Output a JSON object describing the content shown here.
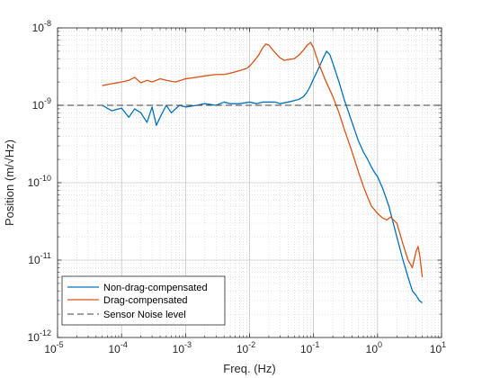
{
  "chart_data": {
    "type": "line",
    "xlabel": "Freq. (Hz)",
    "ylabel": "Position (m/√Hz)",
    "x_scale": "log",
    "y_scale": "log",
    "xlim": [
      1e-05,
      10
    ],
    "ylim": [
      1e-12,
      1e-08
    ],
    "grid": true,
    "minor_grid": true,
    "legend_position": "bottom-left",
    "x_ticks": [
      {
        "value": 1e-05,
        "base": "10",
        "exp": "-5"
      },
      {
        "value": 0.0001,
        "base": "10",
        "exp": "-4"
      },
      {
        "value": 0.001,
        "base": "10",
        "exp": "-3"
      },
      {
        "value": 0.01,
        "base": "10",
        "exp": "-2"
      },
      {
        "value": 0.1,
        "base": "10",
        "exp": "-1"
      },
      {
        "value": 1,
        "base": "10",
        "exp": "0"
      },
      {
        "value": 10,
        "base": "10",
        "exp": "1"
      }
    ],
    "y_ticks": [
      {
        "value": 1e-12,
        "base": "10",
        "exp": "-12"
      },
      {
        "value": 1e-11,
        "base": "10",
        "exp": "-11"
      },
      {
        "value": 1e-10,
        "base": "10",
        "exp": "-10"
      },
      {
        "value": 1e-09,
        "base": "10",
        "exp": "-9"
      },
      {
        "value": 1e-08,
        "base": "10",
        "exp": "-8"
      }
    ],
    "series": [
      {
        "name": "Non-drag-compensated",
        "color": "#0072BD",
        "style": "solid",
        "x": [
          5e-05,
          7e-05,
          0.0001,
          0.00013,
          0.00016,
          0.0002,
          0.00025,
          0.0003,
          0.00035,
          0.0004,
          0.0005,
          0.0006,
          0.0008,
          0.001,
          0.0015,
          0.002,
          0.003,
          0.004,
          0.005,
          0.007,
          0.01,
          0.013,
          0.016,
          0.02,
          0.025,
          0.03,
          0.04,
          0.05,
          0.06,
          0.07,
          0.08,
          0.09,
          0.1,
          0.12,
          0.14,
          0.16,
          0.18,
          0.2,
          0.25,
          0.3,
          0.4,
          0.5,
          0.6,
          0.7,
          0.8,
          0.9,
          1.0,
          1.1,
          1.2,
          1.5,
          2.0,
          2.5,
          3.0,
          3.5,
          4.0,
          4.5,
          5.0
        ],
        "y": [
          1e-09,
          8.5e-10,
          9.2e-10,
          7e-10,
          9e-10,
          8e-10,
          6e-10,
          9.5e-10,
          5.5e-10,
          7e-10,
          1e-09,
          8e-10,
          1e-09,
          9.5e-10,
          1e-09,
          1.05e-09,
          1e-09,
          1.1e-09,
          1.05e-09,
          1.05e-09,
          1.1e-09,
          1.05e-09,
          1.1e-09,
          1.1e-09,
          1.1e-09,
          1.05e-09,
          1.1e-09,
          1.15e-09,
          1.2e-09,
          1.3e-09,
          1.5e-09,
          1.8e-09,
          2.2e-09,
          3e-09,
          4e-09,
          5e-09,
          4.5e-09,
          3.5e-09,
          2e-09,
          1.2e-09,
          6e-10,
          3.5e-10,
          2.5e-10,
          2e-10,
          1.6e-10,
          1.35e-10,
          1.2e-10,
          1e-10,
          8.5e-11,
          5e-11,
          2e-11,
          1e-11,
          6e-12,
          4e-12,
          3.5e-12,
          3e-12,
          2.8e-12
        ]
      },
      {
        "name": "Drag-compensated",
        "color": "#D95319",
        "style": "solid",
        "x": [
          5e-05,
          7e-05,
          0.0001,
          0.00013,
          0.00016,
          0.0002,
          0.00025,
          0.0003,
          0.0004,
          0.0005,
          0.0007,
          0.001,
          0.0015,
          0.002,
          0.003,
          0.004,
          0.005,
          0.007,
          0.009,
          0.01,
          0.012,
          0.014,
          0.016,
          0.018,
          0.02,
          0.025,
          0.03,
          0.035,
          0.04,
          0.05,
          0.06,
          0.07,
          0.08,
          0.09,
          0.1,
          0.12,
          0.15,
          0.2,
          0.25,
          0.3,
          0.4,
          0.5,
          0.6,
          0.7,
          0.8,
          1.0,
          1.2,
          1.4,
          1.6,
          2.0,
          2.5,
          3.0,
          3.5,
          4.0,
          4.3,
          4.6,
          5.0
        ],
        "y": [
          1.8e-09,
          1.9e-09,
          2e-09,
          2.1e-09,
          2.3e-09,
          1.95e-09,
          2.1e-09,
          2e-09,
          2.2e-09,
          2.1e-09,
          2e-09,
          2.2e-09,
          2.3e-09,
          2.4e-09,
          2.5e-09,
          2.5e-09,
          2.6e-09,
          2.8e-09,
          3e-09,
          3.2e-09,
          3.8e-09,
          4.5e-09,
          5.5e-09,
          6.2e-09,
          6e-09,
          4.8e-09,
          4.1e-09,
          3.8e-09,
          3.9e-09,
          4e-09,
          4.5e-09,
          5.2e-09,
          6e-09,
          6.5e-09,
          5.5e-09,
          3.5e-09,
          2.2e-09,
          1.3e-09,
          8e-10,
          5e-10,
          2.5e-10,
          1.4e-10,
          9e-11,
          6.5e-11,
          5e-11,
          4e-11,
          3.5e-11,
          3.3e-11,
          3.6e-11,
          3e-11,
          1.6e-11,
          1e-11,
          8e-12,
          1.3e-11,
          1.5e-11,
          1.1e-11,
          6e-12
        ]
      },
      {
        "name": "Sensor Noise level",
        "color": "#404040",
        "style": "dashed",
        "x": [
          1e-05,
          10
        ],
        "y": [
          1e-09,
          1e-09
        ]
      }
    ]
  }
}
